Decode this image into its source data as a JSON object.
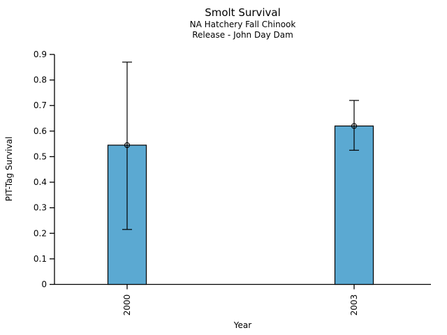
{
  "chart_data": {
    "type": "bar",
    "title": "Smolt Survival",
    "subtitle1": "NA Hatchery Fall Chinook",
    "subtitle2": "Release - John Day Dam",
    "xlabel": "Year",
    "ylabel": "PIT-Tag Survival",
    "categories": [
      "2000",
      "2003"
    ],
    "values": [
      0.545,
      0.62
    ],
    "error_low": [
      0.215,
      0.525
    ],
    "error_high": [
      0.87,
      0.72
    ],
    "ylim": [
      0,
      0.9
    ],
    "ytick_labels": [
      "0",
      "0.1",
      "0.2",
      "0.3",
      "0.4",
      "0.5",
      "0.6",
      "0.7",
      "0.8",
      "0.9"
    ],
    "marker": "circle-plus",
    "grid": false,
    "legend_position": "none",
    "bar_color": "#5BA9D2",
    "axis_color": "#000000"
  }
}
